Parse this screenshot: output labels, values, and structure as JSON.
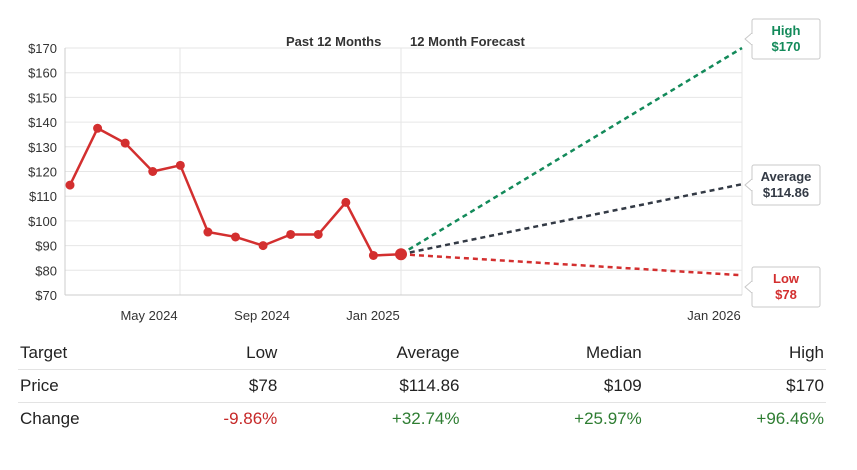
{
  "chart_data": {
    "type": "line",
    "header_labels": [
      "Past 12 Months",
      "12 Month Forecast"
    ],
    "y_ticks": [
      "$170",
      "$160",
      "$150",
      "$140",
      "$130",
      "$120",
      "$110",
      "$100",
      "$90",
      "$80",
      "$70"
    ],
    "ylim": [
      70,
      170
    ],
    "x_ticks": [
      "May 2024",
      "Sep 2024",
      "Jan 2025",
      "Jan 2026"
    ],
    "history": {
      "name": "Price",
      "values": [
        114.5,
        137.5,
        131.5,
        120,
        122.5,
        95.5,
        93.5,
        90,
        94.5,
        94.5,
        107.5,
        86,
        86.5
      ]
    },
    "forecast": [
      {
        "name": "High",
        "value_label": "$170",
        "value": 170,
        "color": "#138a5a"
      },
      {
        "name": "Average",
        "value_label": "$114.86",
        "value": 114.86,
        "color": "#333a45"
      },
      {
        "name": "Low",
        "value_label": "$78",
        "value": 78,
        "color": "#d32f2f"
      }
    ]
  },
  "table": {
    "headers": [
      "Target",
      "Low",
      "Average",
      "Median",
      "High"
    ],
    "rows": [
      {
        "label": "Price",
        "low": "$78",
        "average": "$114.86",
        "median": "$109",
        "high": "$170"
      },
      {
        "label": "Change",
        "low": "-9.86%",
        "average": "+32.74%",
        "median": "+25.97%",
        "high": "+96.46%"
      }
    ]
  },
  "colors": {
    "history": "#d32f2f",
    "grid": "#e6e6e6",
    "axis": "#cccccc"
  }
}
